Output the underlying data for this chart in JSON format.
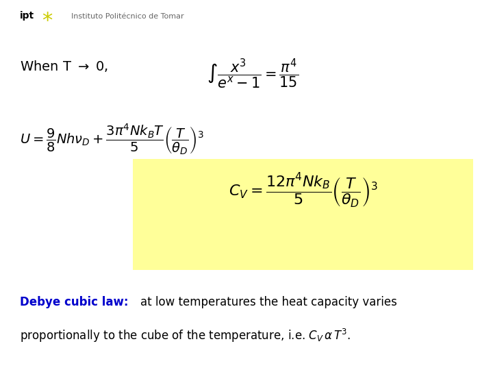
{
  "bg_color": "#ffffff",
  "logo_text_ipt": "ipt",
  "logo_text_institute": "Instituto Politécnico de Tomar",
  "when_text": "When T",
  "arrow_symbol": "\\rightarrow",
  "zero_text": "0,",
  "integral_formula": "\\int\\frac{x^3}{e^x-1}=\\frac{\\pi^4}{15}",
  "U_formula": "U=\\frac{9}{8}Nh\\nu_D+\\frac{3\\pi^4Nk_BT}{5}\\left(\\frac{T}{\\theta_D}\\right)^3",
  "CV_formula": "C_V=\\frac{12\\pi^4Nk_B}{5}\\left(\\frac{T}{\\theta_D}\\right)^3",
  "highlight_color": "#ffff99",
  "debye_label_color": "#0000cc",
  "debye_label": "Debye cubic law:",
  "debye_text": " at low temperatures the heat capacity varies\nproportionally to the cube of the temperature, i.e. $C_V\\alpha\\, T^3$.",
  "body_text_color": "#000000",
  "logo_color_ipt": "#000000",
  "logo_star_color": "#cccc00",
  "logo_inst_color": "#666666"
}
